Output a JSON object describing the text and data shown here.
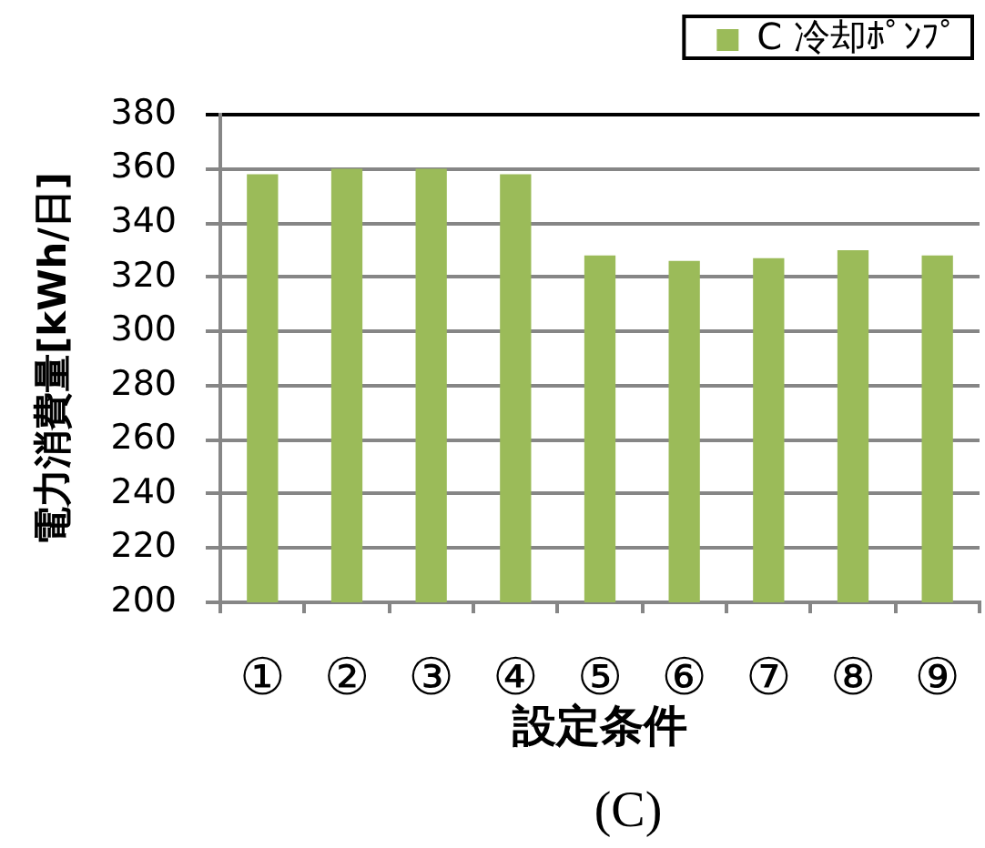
{
  "chart_data": {
    "type": "bar",
    "categories": [
      "①",
      "②",
      "③",
      "④",
      "⑤",
      "⑥",
      "⑦",
      "⑧",
      "⑨"
    ],
    "series": [
      {
        "name": "C 冷却ﾎﾟﾝﾌﾟ",
        "color": "#9bbb59",
        "values": [
          358,
          360,
          360,
          358,
          328,
          326,
          327,
          330,
          328
        ]
      }
    ],
    "xlabel": "設定条件",
    "ylabel": "電力消費量[kWh/日]",
    "ylim": [
      200,
      380
    ],
    "yticks": [
      200,
      220,
      240,
      260,
      280,
      300,
      320,
      340,
      360,
      380
    ],
    "grid": "y",
    "legend": "top right",
    "annotations": [
      "(C)"
    ]
  }
}
